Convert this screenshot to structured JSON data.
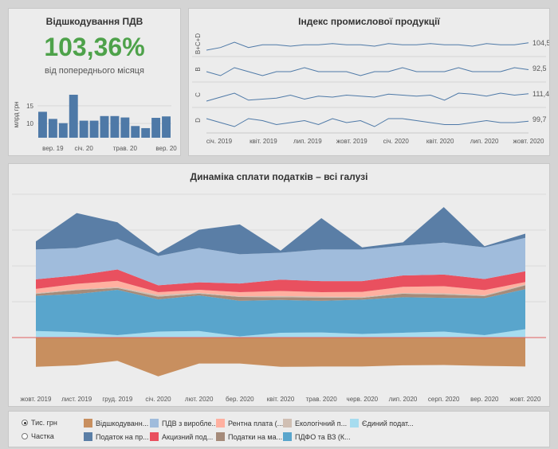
{
  "vat": {
    "title": "Відшкодування ПДВ",
    "value": "103,36%",
    "subtitle": "від попереднього місяця",
    "chart_data": {
      "type": "bar",
      "ylabel": "млрд грн",
      "yticks": [
        10,
        15
      ],
      "ylim": [
        6,
        19
      ],
      "values": [
        13.3,
        11.3,
        10.1,
        18.1,
        10.8,
        10.8,
        12.1,
        12.1,
        11.7,
        9.3,
        8.7,
        11.6,
        12.0
      ],
      "xlabels": [
        {
          "i": 1,
          "text": "вер. 19"
        },
        {
          "i": 4,
          "text": "січ. 20"
        },
        {
          "i": 8,
          "text": "трав. 20"
        },
        {
          "i": 12,
          "text": "вер. 20"
        }
      ],
      "color": "#4e79a7"
    }
  },
  "ipi": {
    "title": "Індекс промислової продукції",
    "chart_data": {
      "type": "line",
      "rows": [
        {
          "label": "В+С+D",
          "value": "104,5",
          "values": [
            99,
            101,
            105,
            101,
            103,
            103,
            102,
            103,
            103,
            104,
            103,
            103,
            102,
            104,
            103,
            103,
            104,
            103,
            103,
            102,
            104,
            103,
            103,
            104.5
          ]
        },
        {
          "label": "В",
          "value": "92,5",
          "values": [
            92,
            91,
            93,
            92,
            91,
            92,
            92,
            93,
            92,
            92,
            92,
            91,
            92,
            92,
            93,
            92,
            92,
            92,
            93,
            92,
            92,
            92,
            93,
            92.5
          ]
        },
        {
          "label": "С",
          "value": "111,4",
          "values": [
            104,
            108,
            112,
            105,
            106,
            107,
            110,
            106,
            109,
            108,
            110,
            109,
            108,
            111,
            110,
            109,
            110,
            105,
            112,
            111,
            109,
            112,
            110,
            111.4
          ]
        },
        {
          "label": "D",
          "value": "99,7",
          "values": [
            101,
            99,
            97,
            101,
            100,
            98,
            99,
            100,
            98,
            101,
            99,
            100,
            97,
            101,
            101,
            100,
            99,
            98,
            98,
            99,
            100,
            99,
            99,
            99.7
          ]
        }
      ],
      "xlabels": [
        "січ. 2019",
        "квіт. 2019",
        "лип. 2019",
        "жовт. 2019",
        "січ. 2020",
        "квіт. 2020",
        "лип. 2020",
        "жовт. 2020"
      ]
    }
  },
  "tax": {
    "title": "Динаміка сплати податків – всі галузі",
    "chart_data": {
      "type": "area",
      "categories": [
        "жовт. 2019",
        "лист. 2019",
        "груд. 2019",
        "січ. 2020",
        "лют. 2020",
        "бер. 2020",
        "квіт. 2020",
        "трав. 2020",
        "черв. 2020",
        "лип. 2020",
        "серп. 2020",
        "вер. 2020",
        "жовт. 2020"
      ],
      "ylim": [
        -16,
        48
      ],
      "positive_series": [
        {
          "name": "Єдиний податок",
          "color": "#a6dcef",
          "values": [
            2.2,
            1.8,
            0.8,
            2.0,
            2.2,
            0.4,
            1.6,
            1.7,
            1.2,
            1.6,
            2.0,
            0.8,
            2.8
          ]
        },
        {
          "name": "ПДФО та ВЗ",
          "color": "#59a5cc",
          "values": [
            11.8,
            12.8,
            15.2,
            10.8,
            11.9,
            11.9,
            11.0,
            10.6,
            11.5,
            11.9,
            11.3,
            12.4,
            13.4
          ]
        },
        {
          "name": "Податки на майно",
          "color": "#a58b7a",
          "values": [
            0.6,
            1.3,
            0.6,
            0.9,
            0.6,
            1.3,
            0.9,
            1.1,
            0.6,
            1.2,
            1.1,
            0.7,
            1.3
          ]
        },
        {
          "name": "Екологічний податок",
          "color": "#d0bfb3",
          "values": [
            0.3,
            0.2,
            0.3,
            0.6,
            0.3,
            0.2,
            0.4,
            0.3,
            0.3,
            0.2,
            0.4,
            0.3,
            0.3
          ]
        },
        {
          "name": "Рентна плата",
          "color": "#ffb0a0",
          "values": [
            1.4,
            1.9,
            2.1,
            0.9,
            1.0,
            1.4,
            1.7,
            1.5,
            1.7,
            2.1,
            2.4,
            1.7,
            0.8
          ]
        },
        {
          "name": "Акцизний податок",
          "color": "#e9505f",
          "values": [
            3.2,
            2.8,
            3.8,
            2.3,
            2.5,
            2.9,
            3.8,
            3.7,
            3.6,
            3.8,
            3.9,
            3.7,
            3.6
          ]
        },
        {
          "name": "ПДВ з виробленої продукції",
          "color": "#a0bcdc",
          "values": [
            10.0,
            9.2,
            10.2,
            9.8,
            11.5,
            9.8,
            9.0,
            10.6,
            10.6,
            10.0,
            10.7,
            10.6,
            11.2
          ]
        },
        {
          "name": "Податок на прибуток",
          "color": "#5a7ea6",
          "values": [
            2.7,
            11.7,
            5.6,
            1.0,
            6.1,
            10.0,
            0.7,
            10.5,
            0.7,
            1.1,
            11.9,
            0.4,
            1.4
          ]
        }
      ],
      "negative_series": [
        {
          "name": "Відшкодування ПДВ",
          "color": "#c88f5f",
          "values": [
            -9.8,
            -9.3,
            -7.8,
            -13.0,
            -8.7,
            -8.7,
            -9.8,
            -9.7,
            -9.7,
            -9.3,
            -9.2,
            -9.5,
            -9.7
          ]
        }
      ],
      "zero_line_color": "#e06060"
    }
  },
  "legend": {
    "radios": [
      {
        "label": "Тис. грн",
        "selected": true
      },
      {
        "label": "Частка",
        "selected": false
      }
    ],
    "items": [
      {
        "label": "Відшкодуванн...",
        "color": "#c88f5f"
      },
      {
        "label": "Податок на пр...",
        "color": "#5a7ea6"
      },
      {
        "label": "ПДВ з виробле...",
        "color": "#a0bcdc"
      },
      {
        "label": "Акцизний под...",
        "color": "#e9505f"
      },
      {
        "label": "Рентна плата (...",
        "color": "#ffb0a0"
      },
      {
        "label": "Податки на ма...",
        "color": "#a58b7a"
      },
      {
        "label": "Екологічний п...",
        "color": "#d0bfb3"
      },
      {
        "label": "ПДФО та ВЗ (К...",
        "color": "#59a5cc"
      },
      {
        "label": "Єдиний подат...",
        "color": "#a6dcef"
      }
    ]
  }
}
